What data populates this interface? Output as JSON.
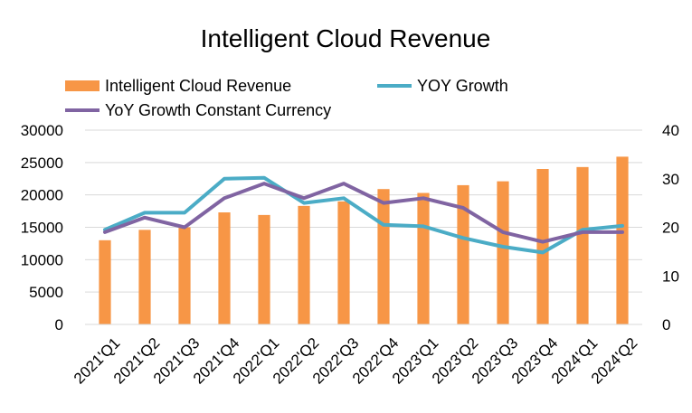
{
  "chart_data": {
    "type": "bar",
    "title": "Intelligent Cloud Revenue",
    "categories": [
      "2021'Q1",
      "2021'Q2",
      "2021'Q3",
      "2021'Q4",
      "2022'Q1",
      "2022'Q2",
      "2022'Q3",
      "2022'Q4",
      "2023'Q1",
      "2023'Q2",
      "2023'Q3",
      "2023'Q4",
      "2024'Q1",
      "2024'Q2"
    ],
    "series": [
      {
        "name": "Intelligent Cloud Revenue",
        "type": "bar",
        "axis": "left",
        "color": "#F79646",
        "values": [
          13000,
          14600,
          15000,
          17300,
          16900,
          18300,
          19000,
          20900,
          20300,
          21500,
          22100,
          24000,
          24300,
          25900
        ]
      },
      {
        "name": "YOY Growth",
        "type": "line",
        "axis": "right",
        "color": "#4BACC6",
        "values": [
          19.5,
          23,
          23,
          30,
          30.2,
          25,
          26,
          20.5,
          20.2,
          17.8,
          16,
          14.8,
          19.5,
          20.3
        ]
      },
      {
        "name": "YoY Growth Constant Currency",
        "type": "line",
        "axis": "right",
        "color": "#8064A2",
        "values": [
          19,
          22,
          20,
          26,
          29,
          26,
          29,
          25,
          26,
          24,
          19,
          17,
          19,
          19
        ]
      }
    ],
    "y_left": {
      "min": 0,
      "max": 30000,
      "ticks": [
        "0",
        "5000",
        "10000",
        "15000",
        "20000",
        "25000",
        "30000"
      ]
    },
    "y_right": {
      "min": 0,
      "max": 40,
      "ticks": [
        "0",
        "10",
        "20",
        "30",
        "40"
      ]
    },
    "grid": true,
    "legend_position": "top"
  }
}
